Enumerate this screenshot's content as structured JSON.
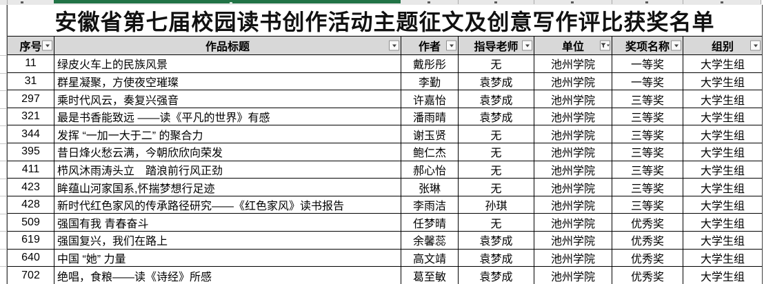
{
  "title": "安徽省第七届校园读书创作活动主题征文及创意写作评比获奖名单",
  "table": {
    "columns": [
      {
        "label": "序号",
        "filter_icon": "chevron-down-icon"
      },
      {
        "label": "作品标题",
        "filter_icon": "chevron-down-icon"
      },
      {
        "label": "作者",
        "filter_icon": "chevron-down-icon"
      },
      {
        "label": "指导老师",
        "filter_icon": "chevron-down-icon"
      },
      {
        "label": "单位",
        "filter_icon": "funnel-filter-icon"
      },
      {
        "label": "奖项名称",
        "filter_icon": "chevron-down-icon"
      },
      {
        "label": "组别",
        "filter_icon": "chevron-down-icon"
      }
    ],
    "rows": [
      [
        "11",
        "绿皮火车上的民族风景",
        "戴彤彤",
        "无",
        "池州学院",
        "一等奖",
        "大学生组"
      ],
      [
        "31",
        "群星凝聚，方使夜空璀璨",
        "李勤",
        "袁梦成",
        "池州学院",
        "一等奖",
        "大学生组"
      ],
      [
        "297",
        "乘时代风云，奏复兴强音",
        "许嘉怡",
        "袁梦成",
        "池州学院",
        "三等奖",
        "大学生组"
      ],
      [
        "321",
        "最是书香能致远 ——读《平凡的世界》有感",
        "潘雨晴",
        "袁梦成",
        "池州学院",
        "三等奖",
        "大学生组"
      ],
      [
        "344",
        "发挥 “一加一大于二” 的聚合力",
        "谢玉贤",
        "无",
        "池州学院",
        "三等奖",
        "大学生组"
      ],
      [
        "395",
        "昔日烽火愁云满，今朝欣欣向荣发",
        "鲍仁杰",
        "无",
        "池州学院",
        "三等奖",
        "大学生组"
      ],
      [
        "411",
        "栉风沐雨涛头立　踏浪前行风正劲",
        "郝心怡",
        "无",
        "池州学院",
        "三等奖",
        "大学生组"
      ],
      [
        "423",
        "眸蕴山河家国系,怀揣梦想行足迹",
        "张琳",
        "无",
        "池州学院",
        "三等奖",
        "大学生组"
      ],
      [
        "428",
        "新时代红色家风的传承路径研究——《红色家风》读书报告",
        "李雨洁",
        "孙琪",
        "池州学院",
        "三等奖",
        "大学生组"
      ],
      [
        "509",
        "强国有我 青春奋斗",
        "任梦晴",
        "无",
        "池州学院",
        "优秀奖",
        "大学生组"
      ],
      [
        "619",
        "强国复兴，我们在路上",
        "余馨蕊",
        "袁梦成",
        "池州学院",
        "优秀奖",
        "大学生组"
      ],
      [
        "640",
        "中国 “她” 力量",
        "高文靖",
        "袁梦成",
        "池州学院",
        "优秀奖",
        "大学生组"
      ],
      [
        "702",
        "绝唱，食粮——读《诗经》所感",
        "葛至敏",
        "袁梦成",
        "池州学院",
        "优秀奖",
        "大学生组"
      ]
    ]
  },
  "colors": {
    "excel_green": "#217346",
    "header_bg": "#d8d8d8",
    "grid_line": "#000000",
    "strip_bg": "#e8e8e8",
    "title_text": "#111111"
  }
}
